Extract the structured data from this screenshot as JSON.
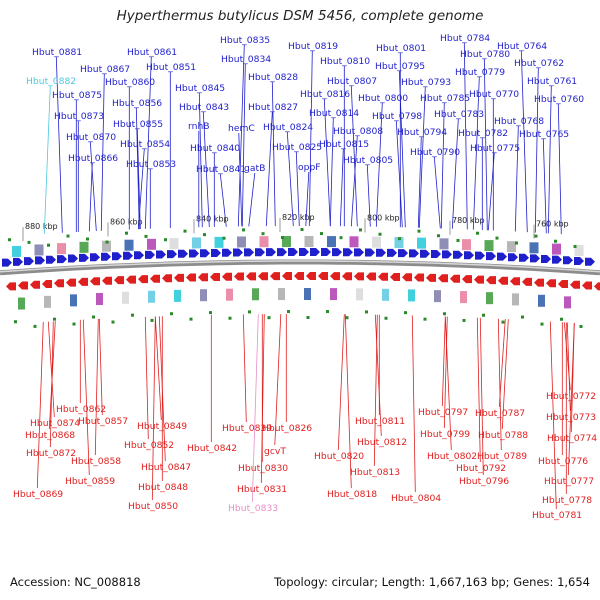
{
  "header": {
    "title": "Hyperthermus butylicus DSM 5456, complete genome"
  },
  "footer": {
    "accession": "Accession: NC_008818",
    "summary": "Topology: circular; Length: 1,667,163 bp; Genes: 1,654"
  },
  "colors": {
    "forward": "#1f1fcc",
    "reverse": "#e01f1f",
    "highlight_forward": "#4fc8de",
    "highlight_reverse": "#e88ec8",
    "backbone": "#8c8c8c"
  },
  "scale_labels": [
    "880 kbp",
    "860 kbp",
    "840 kbp",
    "820 kbp",
    "800 kbp",
    "780 kbp",
    "760 kbp"
  ],
  "forward_labels": [
    "Hbut_0835",
    "Hbut_0819",
    "Hbut_0801",
    "Hbut_0784",
    "Hbut_0881",
    "Hbut_0861",
    "Hbut_0834",
    "Hbut_0810",
    "Hbut_0780",
    "Hbut_0764",
    "Hbut_0882",
    "Hbut_0867",
    "Hbut_0851",
    "Hbut_0828",
    "Hbut_0795",
    "Hbut_0779",
    "Hbut_0762",
    "Hbut_0860",
    "Hbut_0845",
    "Hbut_0807",
    "Hbut_0793",
    "Hbut_0761",
    "Hbut_0875",
    "Hbut_0856",
    "Hbut_0816",
    "Hbut_0800",
    "Hbut_0785",
    "Hbut_0770",
    "Hbut_0760",
    "Hbut_0843",
    "Hbut_0827",
    "Hbut_0814",
    "Hbut_0873",
    "Hbut_0855",
    "Hbut_0798",
    "Hbut_0783",
    "Hbut_0768",
    "rnhB",
    "hemC",
    "Hbut_0824",
    "Hbut_0808",
    "Hbut_0794",
    "Hbut_0782",
    "Hbut_0765",
    "Hbut_0870",
    "Hbut_0854",
    "Hbut_0815",
    "Hbut_0840",
    "Hbut_0825",
    "Hbut_0790",
    "Hbut_0775",
    "Hbut_0866",
    "Hbut_0853",
    "Hbut_0805",
    "Hbut_0841",
    "gatB",
    "oppF"
  ],
  "reverse_labels": [
    "Hbut_0772",
    "Hbut_0773",
    "Hbut_0862",
    "Hbut_0797",
    "Hbut_0787",
    "Hbut_0874",
    "Hbut_0857",
    "Hbut_0811",
    "Hbut_0774",
    "Hbut_0868",
    "Hbut_0849",
    "Hbut_0839",
    "Hbut_0826",
    "Hbut_0799",
    "Hbut_0788",
    "Hbut_0812",
    "Hbut_0852",
    "Hbut_0842",
    "Hbut_0872",
    "Hbut_0820",
    "Hbut_0802",
    "Hbut_0789",
    "Hbut_0776",
    "Hbut_0858",
    "gcvT",
    "Hbut_0847",
    "Hbut_0792",
    "Hbut_0830",
    "Hbut_0813",
    "Hbut_0777",
    "Hbut_0859",
    "Hbut_0796",
    "Hbut_0848",
    "Hbut_0831",
    "Hbut_0869",
    "Hbut_0818",
    "Hbut_0804",
    "Hbut_0778",
    "Hbut_0850",
    "Hbut_0833",
    "Hbut_0781"
  ]
}
